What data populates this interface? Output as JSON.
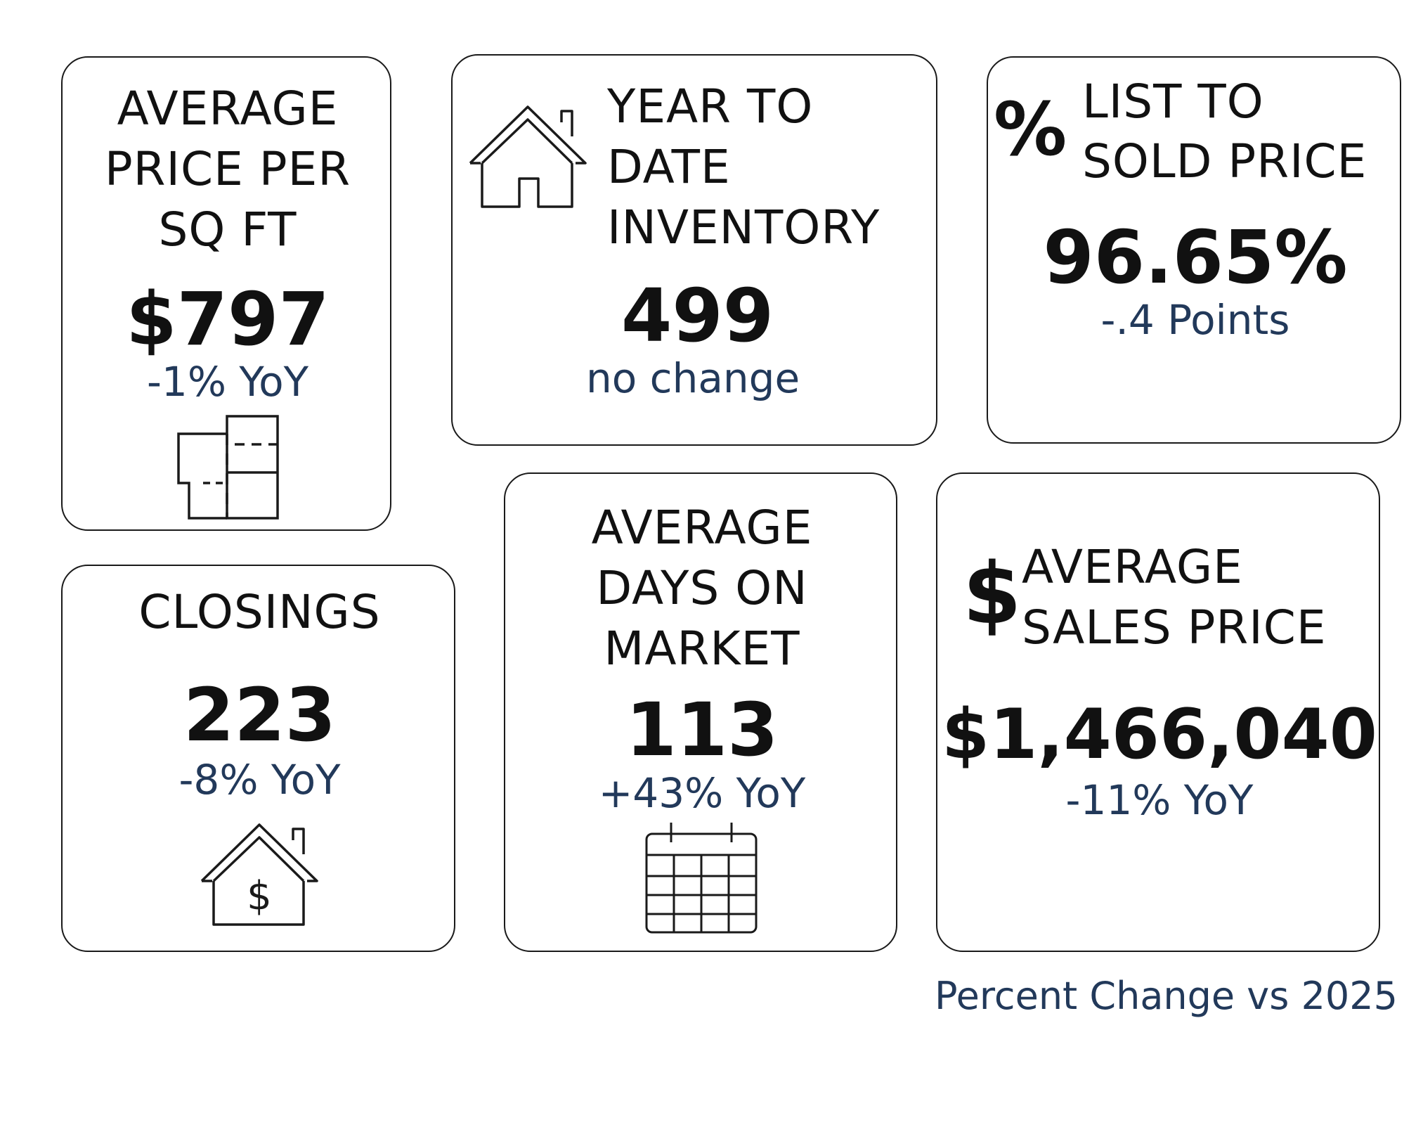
{
  "cards": {
    "price_per_sqft": {
      "title_lines": [
        "AVERAGE",
        "PRICE PER",
        "SQ FT"
      ],
      "value": "$797",
      "change": "-1% YoY",
      "icon": "floor-plan-icon"
    },
    "inventory": {
      "title_lines": [
        "YEAR TO",
        "DATE",
        "INVENTORY"
      ],
      "value": "499",
      "change": "no change",
      "icon": "house-outline-icon"
    },
    "list_to_sold": {
      "symbol": "%",
      "title_lines": [
        "LIST TO",
        "SOLD PRICE"
      ],
      "value": "96.65%",
      "change": "-.4 Points",
      "icon": "percent-icon"
    },
    "closings": {
      "title_lines": [
        "CLOSINGS"
      ],
      "value": "223",
      "change": "-8% YoY",
      "icon": "house-dollar-icon"
    },
    "days_on_market": {
      "title_lines": [
        "AVERAGE",
        "DAYS ON",
        "MARKET"
      ],
      "value": "113",
      "change": "+43% YoY",
      "icon": "calendar-icon"
    },
    "sales_price": {
      "symbol": "$",
      "title_lines": [
        "AVERAGE",
        "SALES PRICE"
      ],
      "value": "$1,466,040",
      "change": "-11% YoY",
      "icon": "dollar-icon"
    }
  },
  "footnote": "Percent Change vs 2025",
  "colors": {
    "text": "#111111",
    "accent": "#22395a",
    "border": "#1a1a1a"
  }
}
